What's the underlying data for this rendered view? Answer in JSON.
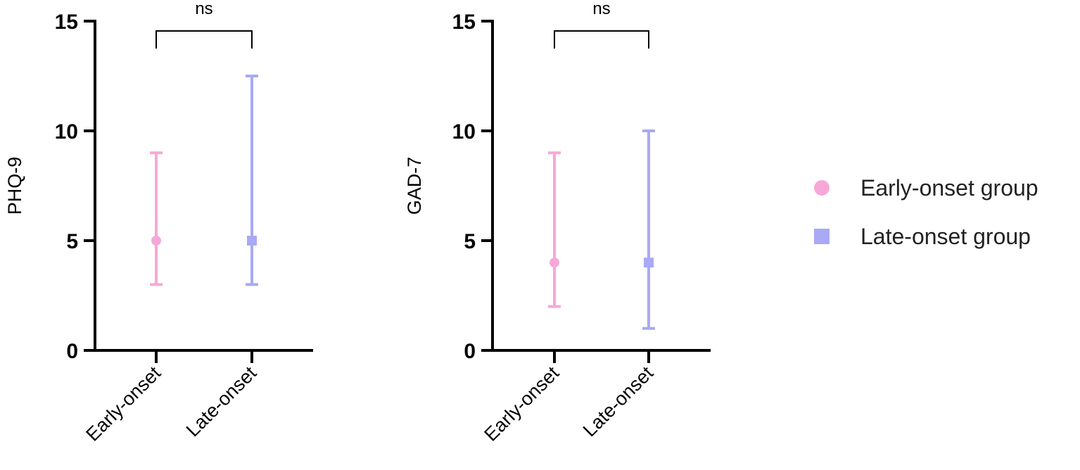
{
  "chart_data": [
    {
      "type": "scatter",
      "panel": "left",
      "ylabel": "PHQ-9",
      "xlabel": "",
      "ylim": [
        0,
        15
      ],
      "yticks": [
        0,
        5,
        10,
        15
      ],
      "categories": [
        "Early-onset",
        "Late-onset"
      ],
      "series": [
        {
          "name": "Early-onset group",
          "category": "Early-onset",
          "marker": "circle",
          "color": "#f7a8d8",
          "median": 5,
          "lower": 3,
          "upper": 9
        },
        {
          "name": "Late-onset group",
          "category": "Late-onset",
          "marker": "square",
          "color": "#a9a9f5",
          "median": 5,
          "lower": 3,
          "upper": 12.5
        }
      ],
      "annotation": "ns"
    },
    {
      "type": "scatter",
      "panel": "right",
      "ylabel": "GAD-7",
      "xlabel": "",
      "ylim": [
        0,
        15
      ],
      "yticks": [
        0,
        5,
        10,
        15
      ],
      "categories": [
        "Early-onset",
        "Late-onset"
      ],
      "series": [
        {
          "name": "Early-onset group",
          "category": "Early-onset",
          "marker": "circle",
          "color": "#f7a8d8",
          "median": 4,
          "lower": 2,
          "upper": 9
        },
        {
          "name": "Late-onset group",
          "category": "Late-onset",
          "marker": "square",
          "color": "#a9a9f5",
          "median": 4,
          "lower": 1,
          "upper": 10
        }
      ],
      "annotation": "ns"
    }
  ],
  "legend": {
    "placement": "right",
    "items": [
      {
        "label": "Early-onset group",
        "marker": "circle",
        "color": "#f7a8d8"
      },
      {
        "label": "Late-onset group",
        "marker": "square",
        "color": "#a9a9f5"
      }
    ]
  }
}
